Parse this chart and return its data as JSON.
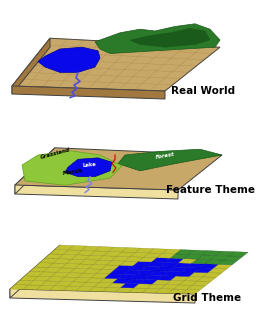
{
  "background_color": "#ffffff",
  "panels": [
    {
      "label": "Real World"
    },
    {
      "label": "Feature Theme"
    },
    {
      "label": "Grid Theme"
    }
  ],
  "tan_color": "#C8A868",
  "tan_dark": "#B89448",
  "blue_color": "#0808E8",
  "green_forest": "#1A6A1A",
  "green_light": "#90C840",
  "edge_color": "#F0E0A0",
  "label_fontsize": 7.5,
  "label_fontweight": "bold"
}
